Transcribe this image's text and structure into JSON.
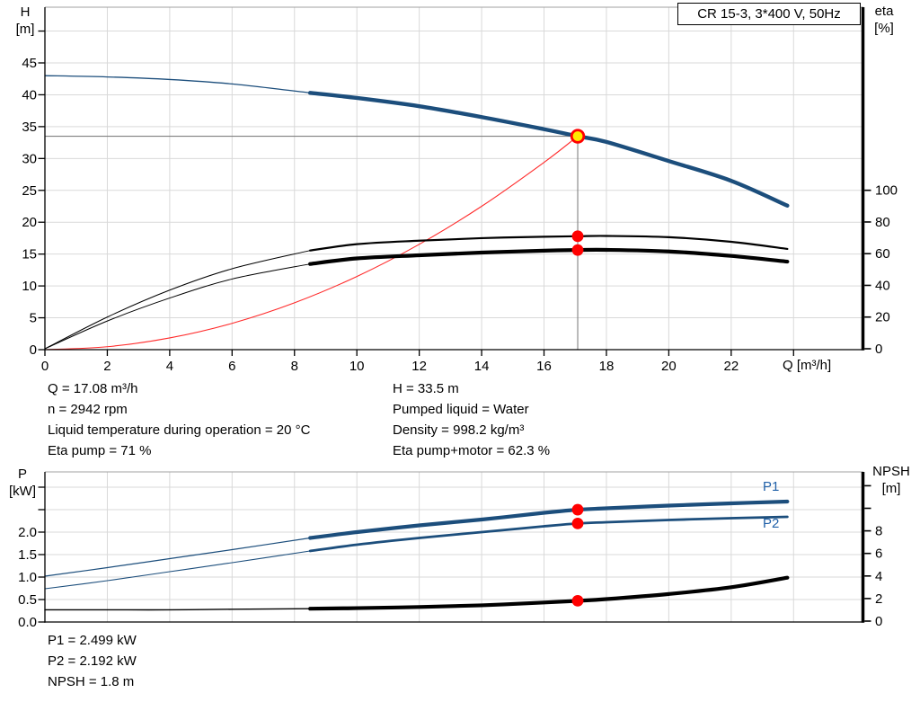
{
  "colors": {
    "curve_blue": "#1c4e7c",
    "series_label_blue": "#2060a8",
    "red": "#ff0000",
    "duty_yellow": "#ffe900",
    "grid": "#d9d9d9",
    "crosshair": "#808080",
    "border_gray": "#a0a0a0",
    "axis_black": "#000000"
  },
  "info_panels": {
    "upper_left": [
      "Q = 17.08 m³/h",
      "n = 2942 rpm",
      "Liquid temperature during operation = 20 °C",
      "Eta pump = 71 %"
    ],
    "upper_right": [
      "H = 33.5 m",
      "Pumped liquid = Water",
      "Density = 998.2 kg/m³",
      "Eta pump+motor = 62.3 %"
    ],
    "lower": [
      "P1 = 2.499 kW",
      "P2 = 2.192 kW",
      "NPSH = 1.8 m"
    ]
  },
  "chart_data": [
    {
      "type": "line",
      "title": "CR 15-3, 3*400 V, 50Hz",
      "x_axis": {
        "label": "Q [m³/h]",
        "min": 0,
        "max": 26.2,
        "ticks": [
          {
            "v": 0,
            "label": "0"
          },
          {
            "v": 2,
            "label": "2"
          },
          {
            "v": 4,
            "label": "4"
          },
          {
            "v": 6,
            "label": "6"
          },
          {
            "v": 8,
            "label": "8"
          },
          {
            "v": 10,
            "label": "10"
          },
          {
            "v": 12,
            "label": "12"
          },
          {
            "v": 14,
            "label": "14"
          },
          {
            "v": 16,
            "label": "16"
          },
          {
            "v": 18,
            "label": "18"
          },
          {
            "v": 20,
            "label": "20"
          },
          {
            "v": 22,
            "label": "22"
          },
          {
            "v": 24,
            "label": ""
          }
        ],
        "gridlines": [
          2,
          4,
          6,
          8,
          10,
          12,
          14,
          16,
          18,
          20,
          22,
          24
        ]
      },
      "y_left": {
        "label_lines": [
          "H",
          "[m]"
        ],
        "min": 0,
        "max": 53.7,
        "ticks": [
          {
            "v": 0,
            "label": "0"
          },
          {
            "v": 5,
            "label": "5"
          },
          {
            "v": 10,
            "label": "10"
          },
          {
            "v": 15,
            "label": "15"
          },
          {
            "v": 20,
            "label": "20"
          },
          {
            "v": 25,
            "label": "25"
          },
          {
            "v": 30,
            "label": "30"
          },
          {
            "v": 35,
            "label": "35"
          },
          {
            "v": 40,
            "label": "40"
          },
          {
            "v": 45,
            "label": "45"
          },
          {
            "v": 50,
            "label": ""
          }
        ],
        "gridlines": [
          5,
          10,
          15,
          20,
          25,
          30,
          35,
          40,
          45,
          50
        ]
      },
      "y_right": {
        "label_lines": [
          "eta",
          "[%]"
        ],
        "min": 0,
        "max": 215,
        "ticks": [
          {
            "v": 0,
            "label": "0"
          },
          {
            "v": 20,
            "label": "20"
          },
          {
            "v": 40,
            "label": "40"
          },
          {
            "v": 60,
            "label": "60"
          },
          {
            "v": 80,
            "label": "80"
          },
          {
            "v": 100,
            "label": "100"
          }
        ]
      },
      "crosshair": {
        "q": 17.08,
        "h": 33.5
      },
      "series": [
        {
          "name": "system-curve",
          "label": "",
          "axis": "left",
          "color": "#ff2a2a",
          "width": 1.1,
          "points": [
            [
              0,
              0
            ],
            [
              2,
              0.46
            ],
            [
              4,
              1.84
            ],
            [
              6,
              4.13
            ],
            [
              8,
              7.35
            ],
            [
              10,
              11.48
            ],
            [
              12,
              16.53
            ],
            [
              14,
              22.5
            ],
            [
              16,
              29.39
            ],
            [
              17.08,
              33.5
            ]
          ]
        },
        {
          "name": "pump-head-curve",
          "label": "H",
          "axis": "left",
          "color": "#1c4e7c",
          "width": 4.4,
          "width_thin": 1.3,
          "split_q": 8.5,
          "points": [
            [
              0,
              43.0
            ],
            [
              2,
              42.8
            ],
            [
              4,
              42.4
            ],
            [
              6,
              41.7
            ],
            [
              8.5,
              40.3
            ],
            [
              10,
              39.5
            ],
            [
              12,
              38.2
            ],
            [
              14,
              36.5
            ],
            [
              16,
              34.6
            ],
            [
              17.08,
              33.5
            ],
            [
              18,
              32.6
            ],
            [
              20,
              29.6
            ],
            [
              22,
              26.5
            ],
            [
              23.8,
              22.6
            ]
          ]
        },
        {
          "name": "eta-pump-curve",
          "label": "Eta pump",
          "axis": "right",
          "color": "#000000",
          "width": 2.2,
          "width_thin": 1.0,
          "split_q": 8.5,
          "points": [
            [
              0,
              0
            ],
            [
              2,
              20
            ],
            [
              4,
              37
            ],
            [
              6,
              50.5
            ],
            [
              8.5,
              62
            ],
            [
              10,
              66
            ],
            [
              12,
              68.2
            ],
            [
              14,
              69.8
            ],
            [
              16,
              70.7
            ],
            [
              17.08,
              71
            ],
            [
              18,
              71.2
            ],
            [
              20,
              70.4
            ],
            [
              22,
              67.5
            ],
            [
              23.8,
              63
            ]
          ]
        },
        {
          "name": "eta-pump-motor-curve",
          "label": "Eta pump+motor",
          "axis": "right",
          "color": "#000000",
          "width": 4.2,
          "width_thin": 1.0,
          "split_q": 8.5,
          "points": [
            [
              0,
              0
            ],
            [
              2,
              17.5
            ],
            [
              4,
              32
            ],
            [
              6,
              44
            ],
            [
              8.5,
              53.5
            ],
            [
              10,
              57
            ],
            [
              12,
              59
            ],
            [
              14,
              60.7
            ],
            [
              16,
              61.9
            ],
            [
              17.08,
              62.3
            ],
            [
              18,
              62.4
            ],
            [
              20,
              61.4
            ],
            [
              22,
              58.6
            ],
            [
              23.8,
              55
            ]
          ]
        }
      ],
      "markers": [
        {
          "name": "duty-point",
          "q": 17.08,
          "value": 33.5,
          "axis": "left",
          "style": "duty"
        },
        {
          "name": "eta-pump-point",
          "q": 17.08,
          "value": 71,
          "axis": "right",
          "style": "dot"
        },
        {
          "name": "eta-pump-motor-point",
          "q": 17.08,
          "value": 62.3,
          "axis": "right",
          "style": "dot"
        }
      ]
    },
    {
      "type": "line",
      "title": "",
      "x_axis": {
        "label": "",
        "min": 0,
        "max": 26.2,
        "ticks": [],
        "gridlines": [
          2,
          4,
          6,
          8,
          10,
          12,
          14,
          16,
          18,
          20,
          22,
          24
        ]
      },
      "y_left": {
        "label_lines": [
          "P",
          "[kW]"
        ],
        "min": 0,
        "max": 3.34,
        "ticks": [
          {
            "v": 0,
            "label": "0.0"
          },
          {
            "v": 0.5,
            "label": "0.5"
          },
          {
            "v": 1,
            "label": "1.0"
          },
          {
            "v": 1.5,
            "label": "1.5"
          },
          {
            "v": 2,
            "label": "2.0"
          },
          {
            "v": 2.5,
            "label": ""
          },
          {
            "v": 3,
            "label": ""
          }
        ],
        "gridlines": [
          0.5,
          1,
          1.5,
          2,
          2.5,
          3
        ]
      },
      "y_right": {
        "label_lines": [
          "NPSH",
          "[m]"
        ],
        "min": 0,
        "max": 13.2,
        "ticks": [
          {
            "v": 0,
            "label": "0"
          },
          {
            "v": 2,
            "label": "2"
          },
          {
            "v": 4,
            "label": "4"
          },
          {
            "v": 6,
            "label": "6"
          },
          {
            "v": 8,
            "label": "8"
          },
          {
            "v": 10,
            "label": ""
          },
          {
            "v": 12,
            "label": ""
          }
        ]
      },
      "series": [
        {
          "name": "p1-curve",
          "label": "P1",
          "axis": "left",
          "color": "#1c4e7c",
          "width": 4.2,
          "width_thin": 1.2,
          "split_q": 8.5,
          "points": [
            [
              0,
              1.02
            ],
            [
              2,
              1.21
            ],
            [
              4,
              1.41
            ],
            [
              6,
              1.61
            ],
            [
              8.5,
              1.87
            ],
            [
              10,
              2.0
            ],
            [
              12,
              2.15
            ],
            [
              14,
              2.28
            ],
            [
              16,
              2.43
            ],
            [
              17.08,
              2.499
            ],
            [
              18,
              2.53
            ],
            [
              20,
              2.59
            ],
            [
              22,
              2.64
            ],
            [
              23.8,
              2.68
            ]
          ]
        },
        {
          "name": "p2-curve",
          "label": "P2",
          "axis": "left",
          "color": "#1c4e7c",
          "width": 2.8,
          "width_thin": 1.1,
          "split_q": 8.5,
          "points": [
            [
              0,
              0.74
            ],
            [
              2,
              0.92
            ],
            [
              4,
              1.12
            ],
            [
              6,
              1.32
            ],
            [
              8.5,
              1.58
            ],
            [
              10,
              1.72
            ],
            [
              12,
              1.87
            ],
            [
              14,
              2.0
            ],
            [
              16,
              2.13
            ],
            [
              17.08,
              2.192
            ],
            [
              18,
              2.22
            ],
            [
              20,
              2.27
            ],
            [
              22,
              2.31
            ],
            [
              23.8,
              2.34
            ]
          ]
        },
        {
          "name": "npsh-curve",
          "label": "NPSH",
          "axis": "right",
          "color": "#000000",
          "width": 4.2,
          "width_thin": 1.4,
          "split_q": 8.5,
          "points": [
            [
              0,
              1.0
            ],
            [
              2,
              1.0
            ],
            [
              4,
              1.0
            ],
            [
              6,
              1.05
            ],
            [
              8.5,
              1.1
            ],
            [
              10,
              1.15
            ],
            [
              12,
              1.25
            ],
            [
              14,
              1.4
            ],
            [
              16,
              1.65
            ],
            [
              17.08,
              1.8
            ],
            [
              18,
              1.95
            ],
            [
              20,
              2.4
            ],
            [
              22,
              3.0
            ],
            [
              23.8,
              3.85
            ]
          ]
        }
      ],
      "markers": [
        {
          "name": "p1-point",
          "q": 17.08,
          "value": 2.499,
          "axis": "left",
          "style": "dot"
        },
        {
          "name": "p2-point",
          "q": 17.08,
          "value": 2.192,
          "axis": "left",
          "style": "dot"
        },
        {
          "name": "npsh-point",
          "q": 17.08,
          "value": 1.8,
          "axis": "right",
          "style": "dot"
        }
      ]
    }
  ]
}
